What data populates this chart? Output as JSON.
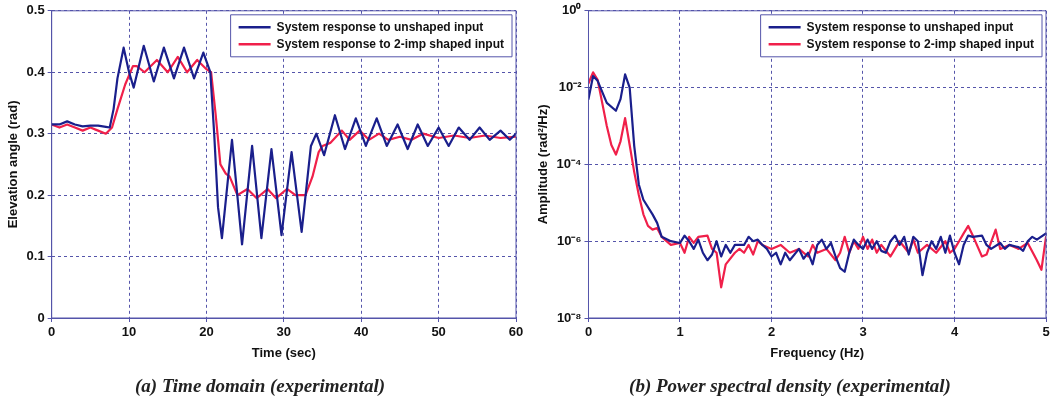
{
  "chart_data": [
    {
      "type": "line",
      "title": "(a) Time domain (experimental)",
      "xlabel": "Time (sec)",
      "ylabel": "Elevation angle (rad)",
      "xlim": [
        0,
        60
      ],
      "xticks": [
        0,
        10,
        20,
        30,
        40,
        50,
        60
      ],
      "ylim": [
        0,
        0.5
      ],
      "yticks": [
        0,
        0.1,
        0.2,
        0.3,
        0.4,
        0.5
      ],
      "grid": true,
      "legend": "top right",
      "marker": "none",
      "line_style": "solid",
      "series": [
        {
          "name": "System response to unshaped input",
          "color": "#1a1f8c",
          "x": [
            0,
            1,
            2,
            3,
            4,
            5,
            6,
            7,
            7.5,
            8,
            8.5,
            9.3,
            10,
            10.6,
            11.9,
            13.2,
            14.5,
            15.8,
            17.1,
            18.4,
            19.6,
            20.5,
            21,
            21.5,
            22,
            23.3,
            24.6,
            25.9,
            27.1,
            28.4,
            29.7,
            31,
            32.3,
            33.5,
            34.2,
            35.2,
            36.6,
            37.9,
            39.3,
            40.6,
            42,
            43.3,
            44.7,
            46,
            47.3,
            48.6,
            50,
            51.3,
            52.6,
            54,
            55.3,
            56.6,
            58,
            59.2,
            60
          ],
          "values": [
            0.315,
            0.315,
            0.32,
            0.315,
            0.312,
            0.313,
            0.313,
            0.311,
            0.31,
            0.34,
            0.39,
            0.44,
            0.4,
            0.375,
            0.443,
            0.385,
            0.44,
            0.39,
            0.44,
            0.39,
            0.432,
            0.4,
            0.3,
            0.18,
            0.13,
            0.29,
            0.12,
            0.28,
            0.13,
            0.275,
            0.135,
            0.27,
            0.14,
            0.28,
            0.3,
            0.265,
            0.33,
            0.275,
            0.325,
            0.28,
            0.325,
            0.28,
            0.315,
            0.275,
            0.315,
            0.28,
            0.31,
            0.28,
            0.31,
            0.29,
            0.31,
            0.29,
            0.305,
            0.29,
            0.3
          ]
        },
        {
          "name": "System response to 2-imp shaped input",
          "color": "#f0204a",
          "x": [
            0,
            1,
            2,
            3,
            4,
            5,
            6,
            7,
            7.8,
            8.5,
            9.5,
            10.5,
            11,
            12,
            13.6,
            15,
            16.3,
            17.5,
            18.8,
            20,
            20.6,
            21.2,
            21.8,
            22.5,
            23,
            24,
            25.3,
            26.5,
            27.9,
            29,
            30.4,
            31.5,
            32.8,
            33.7,
            34.5,
            35,
            36,
            37.5,
            38.5,
            39.8,
            41,
            42.3,
            43.5,
            45,
            46.5,
            48,
            50,
            52,
            54,
            56,
            58,
            60
          ],
          "values": [
            0.315,
            0.31,
            0.315,
            0.31,
            0.305,
            0.31,
            0.305,
            0.3,
            0.31,
            0.34,
            0.38,
            0.41,
            0.41,
            0.4,
            0.42,
            0.4,
            0.425,
            0.4,
            0.42,
            0.405,
            0.4,
            0.33,
            0.25,
            0.235,
            0.23,
            0.2,
            0.21,
            0.195,
            0.21,
            0.195,
            0.21,
            0.2,
            0.2,
            0.23,
            0.27,
            0.28,
            0.285,
            0.305,
            0.29,
            0.305,
            0.29,
            0.3,
            0.29,
            0.295,
            0.29,
            0.3,
            0.293,
            0.297,
            0.293,
            0.297,
            0.293,
            0.295
          ]
        }
      ]
    },
    {
      "type": "line",
      "title": "(b) Power spectral density (experimental)",
      "xlabel": "Frequency (Hz)",
      "ylabel": "Amplitude (rad²/Hz)",
      "log": "y",
      "xlim": [
        0,
        5
      ],
      "xticks": [
        0,
        1,
        2,
        3,
        4,
        5
      ],
      "ylim": [
        1e-08,
        1
      ],
      "yticks": [
        {
          "value": 1e-08,
          "label": "10⁻⁸"
        },
        {
          "value": 1e-06,
          "label": "10⁻⁶"
        },
        {
          "value": 0.0001,
          "label": "10⁻⁴"
        },
        {
          "value": 0.01,
          "label": "10⁻²"
        },
        {
          "value": 1,
          "label": "10⁰"
        }
      ],
      "grid": true,
      "legend": "top right",
      "marker": "none",
      "line_style": "solid",
      "series": [
        {
          "name": "System response to unshaped input",
          "color": "#1a1f8c",
          "x": [
            0,
            0.05,
            0.1,
            0.2,
            0.3,
            0.35,
            0.4,
            0.45,
            0.5,
            0.55,
            0.6,
            0.7,
            0.75,
            0.8,
            0.9,
            1.0,
            1.05,
            1.1,
            1.15,
            1.2,
            1.25,
            1.3,
            1.35,
            1.4,
            1.45,
            1.5,
            1.55,
            1.6,
            1.7,
            1.75,
            1.8,
            1.85,
            1.9,
            1.95,
            2.0,
            2.05,
            2.1,
            2.15,
            2.2,
            2.3,
            2.35,
            2.4,
            2.45,
            2.5,
            2.55,
            2.6,
            2.65,
            2.7,
            2.75,
            2.8,
            2.85,
            2.9,
            2.95,
            3.0,
            3.05,
            3.1,
            3.15,
            3.2,
            3.25,
            3.3,
            3.35,
            3.4,
            3.45,
            3.5,
            3.55,
            3.6,
            3.65,
            3.7,
            3.75,
            3.8,
            3.85,
            3.9,
            3.95,
            4.0,
            4.05,
            4.1,
            4.15,
            4.2,
            4.3,
            4.35,
            4.4,
            4.5,
            4.55,
            4.6,
            4.7,
            4.75,
            4.8,
            4.85,
            4.9,
            5.0
          ],
          "values": [
            0.005,
            0.02,
            0.015,
            0.004,
            0.0025,
            0.005,
            0.022,
            0.01,
            0.0003,
            3e-05,
            1.2e-05,
            5e-06,
            3e-06,
            1.3e-06,
            1e-06,
            9e-07,
            1.4e-06,
            1e-06,
            6.3e-07,
            1.1e-06,
            5e-07,
            3.2e-07,
            4.5e-07,
            1e-06,
            4e-07,
            8e-07,
            5e-07,
            8e-07,
            8e-07,
            1.3e-06,
            1e-06,
            1.1e-06,
            8e-07,
            6.3e-07,
            4e-07,
            5e-07,
            2.5e-07,
            5e-07,
            3.2e-07,
            6.3e-07,
            3.5e-07,
            5e-07,
            2.5e-07,
            8e-07,
            1.1e-06,
            6.3e-07,
            9e-07,
            4e-07,
            2e-07,
            1.6e-07,
            5e-07,
            1.1e-06,
            8e-07,
            6.3e-07,
            1.1e-06,
            6.3e-07,
            1e-06,
            5.6e-07,
            5e-07,
            1e-06,
            1.4e-06,
            8e-07,
            1.3e-06,
            4.5e-07,
            1.3e-06,
            1e-06,
            1.3e-07,
            5e-07,
            1e-06,
            6.3e-07,
            1.3e-06,
            5e-07,
            1.4e-06,
            5e-07,
            2.5e-07,
            8e-07,
            1.4e-06,
            1.3e-06,
            1.4e-06,
            8e-07,
            6.3e-07,
            9e-07,
            6.3e-07,
            8e-07,
            7e-07,
            5.6e-07,
            1e-06,
            1.3e-06,
            1.1e-06,
            1.6e-06
          ]
        },
        {
          "name": "System response to 2-imp shaped input",
          "color": "#f0204a",
          "x": [
            0,
            0.05,
            0.1,
            0.15,
            0.2,
            0.25,
            0.3,
            0.35,
            0.4,
            0.45,
            0.5,
            0.55,
            0.6,
            0.65,
            0.7,
            0.75,
            0.8,
            0.9,
            1.0,
            1.05,
            1.1,
            1.15,
            1.2,
            1.3,
            1.35,
            1.4,
            1.45,
            1.5,
            1.6,
            1.65,
            1.7,
            1.75,
            1.8,
            1.85,
            1.9,
            2.0,
            2.1,
            2.2,
            2.3,
            2.4,
            2.45,
            2.5,
            2.6,
            2.7,
            2.75,
            2.8,
            2.85,
            2.9,
            2.95,
            3.0,
            3.05,
            3.1,
            3.15,
            3.2,
            3.3,
            3.35,
            3.4,
            3.5,
            3.55,
            3.6,
            3.7,
            3.8,
            3.9,
            3.95,
            4.0,
            4.05,
            4.1,
            4.15,
            4.2,
            4.3,
            4.35,
            4.45,
            4.5,
            4.6,
            4.7,
            4.8,
            4.9,
            4.95,
            5.0
          ],
          "values": [
            0.013,
            0.025,
            0.016,
            0.004,
            0.001,
            0.00032,
            0.00018,
            0.0004,
            0.0016,
            0.00032,
            6.3e-05,
            1.6e-05,
            5e-06,
            2.5e-06,
            2e-06,
            2.2e-06,
            1.3e-06,
            8e-07,
            9e-07,
            5e-07,
            1.3e-06,
            9e-07,
            1.3e-06,
            1.4e-06,
            6.3e-07,
            5e-07,
            6.3e-08,
            2.5e-07,
            5e-07,
            6.3e-07,
            5e-07,
            8e-07,
            4.5e-07,
            1e-06,
            8e-07,
            6.3e-07,
            8e-07,
            5e-07,
            6.3e-07,
            4e-07,
            8e-07,
            5e-07,
            6.3e-07,
            3.2e-07,
            5e-07,
            1.3e-06,
            5e-07,
            1e-06,
            6.3e-07,
            1.3e-06,
            6.3e-07,
            1.1e-06,
            5e-07,
            8e-07,
            4e-07,
            6.3e-07,
            1e-06,
            5e-07,
            1.1e-06,
            5e-07,
            8e-07,
            5e-07,
            1e-06,
            5e-07,
            6.3e-07,
            1e-06,
            1.6e-06,
            2.5e-06,
            1.4e-06,
            4e-07,
            4.5e-07,
            2e-06,
            6.3e-07,
            8e-07,
            6.3e-07,
            9e-07,
            3.2e-07,
            1.8e-07,
            1.3e-06
          ]
        }
      ]
    }
  ]
}
